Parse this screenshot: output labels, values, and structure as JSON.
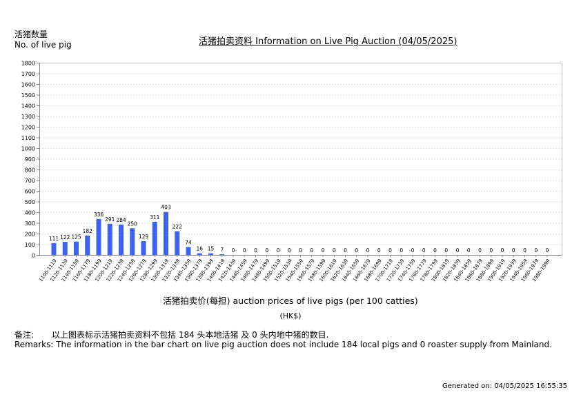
{
  "header": {
    "y_axis_label_zh": "活猪数量",
    "y_axis_label_en": "No. of live pig",
    "title": "活猪拍卖资料 Information on Live Pig Auction (04/05/2025)"
  },
  "axis": {
    "x_title": "活猪拍卖价(每担) auction prices of live pigs (per 100 catties)",
    "x_unit": "(HK$)"
  },
  "remarks": {
    "zh_label": "备注:",
    "zh_text": "以上图表标示活猪拍卖资料不包括 184 头本地活猪 及 0 头内地中猪的数目.",
    "en_text": "Remarks: The information in the bar chart on live pig auction does not include 184 local pigs and 0 roaster supply from Mainland."
  },
  "footer": {
    "generated": "Generated on: 04/05/2025 16:55:35"
  },
  "colors": {
    "bar": "#3b63f0",
    "grid": "#dddddd",
    "axis": "#888888"
  },
  "chart_data": {
    "type": "bar",
    "title": "活猪拍卖资料 Information on Live Pig Auction (04/05/2025)",
    "xlabel": "活猪拍卖价(每担) auction prices of live pigs (per 100 catties) (HK$)",
    "ylabel": "活猪数量 No. of live pig",
    "ylim": [
      0,
      1800
    ],
    "yticks": [
      0,
      100,
      200,
      300,
      400,
      500,
      600,
      700,
      800,
      900,
      1000,
      1100,
      1200,
      1300,
      1400,
      1500,
      1600,
      1700,
      1800
    ],
    "grid": true,
    "legend": null,
    "categories": [
      "1100-1119",
      "1120-1139",
      "1140-1159",
      "1160-1179",
      "1180-1199",
      "1200-1219",
      "1220-1239",
      "1240-1259",
      "1260-1279",
      "1280-1299",
      "1300-1319",
      "1320-1339",
      "1340-1359",
      "1360-1379",
      "1380-1399",
      "1400-1419",
      "1420-1439",
      "1440-1459",
      "1460-1479",
      "1480-1499",
      "1500-1519",
      "1520-1539",
      "1540-1559",
      "1560-1579",
      "1580-1599",
      "1600-1619",
      "1620-1639",
      "1640-1659",
      "1660-1679",
      "1680-1699",
      "1700-1719",
      "1720-1739",
      "1740-1759",
      "1760-1779",
      "1780-1799",
      "1800-1819",
      "1820-1839",
      "1840-1859",
      "1860-1879",
      "1880-1899",
      "1900-1919",
      "1920-1939",
      "1940-1959",
      "1960-1979",
      "1980-1999"
    ],
    "values": [
      111,
      122,
      125,
      182,
      336,
      291,
      284,
      250,
      129,
      311,
      403,
      222,
      74,
      16,
      15,
      7,
      0,
      0,
      0,
      0,
      0,
      0,
      0,
      0,
      0,
      0,
      0,
      0,
      0,
      0,
      0,
      0,
      0,
      0,
      0,
      0,
      0,
      0,
      0,
      0,
      0,
      0,
      0,
      0,
      0
    ]
  }
}
